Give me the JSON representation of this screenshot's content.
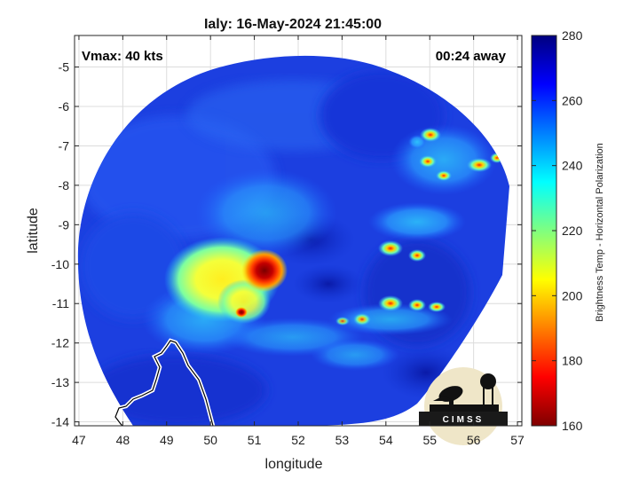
{
  "chart_data": {
    "type": "heatmap",
    "title": "Ialy: 16-May-2024 21:45:00",
    "xlabel": "longitude",
    "ylabel": "latitude",
    "xlim": [
      46.9,
      57.1
    ],
    "ylim": [
      -14.1,
      -4.2
    ],
    "xticks": [
      47,
      48,
      49,
      50,
      51,
      52,
      53,
      54,
      55,
      56,
      57
    ],
    "yticks": [
      -5,
      -6,
      -7,
      -8,
      -9,
      -10,
      -11,
      -12,
      -13,
      -14
    ],
    "grid": true,
    "annotations": {
      "vmax": "Vmax: 40 kts",
      "time_away": "00:24 away"
    },
    "colorbar": {
      "label": "Brightness Temp - Horizontal Polarization",
      "range": [
        160,
        280
      ],
      "ticks": [
        280,
        260,
        240,
        220,
        200,
        180,
        160
      ],
      "colormap": "jet"
    },
    "features": [
      {
        "name": "storm core",
        "lon": 51.3,
        "lat": -10.0,
        "value": 168
      },
      {
        "name": "yellow convective region",
        "lon": 50.4,
        "lat": -10.2,
        "value": 205
      },
      {
        "name": "outer rain band east",
        "lon": 55.2,
        "lat": -10.9,
        "value": 185
      },
      {
        "name": "northeast rain band",
        "lon": 55.8,
        "lat": -7.5,
        "value": 180
      }
    ],
    "logo_text": "CIMSS"
  },
  "colors": {
    "background": "#ffffff",
    "swath_base": "#1c3fe0",
    "land_outline": "#ffffff",
    "axes": "#262626"
  }
}
